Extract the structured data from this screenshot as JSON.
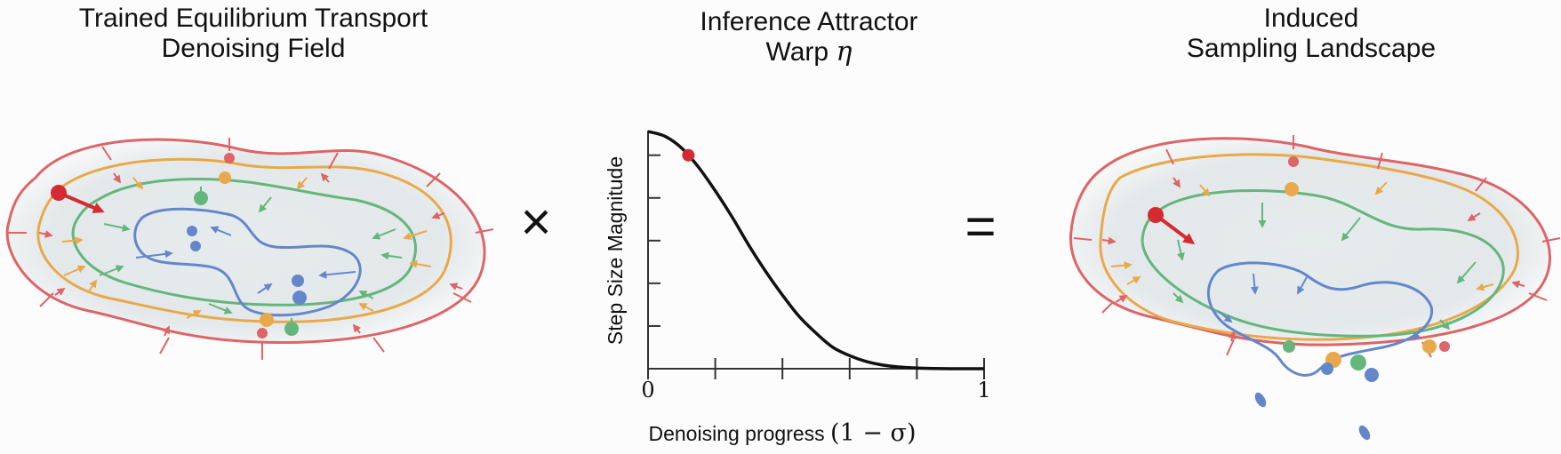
{
  "panels": {
    "left": {
      "title_line1": "Trained Equilibrium Transport",
      "title_line2": "Denoising Field"
    },
    "middle": {
      "title_line1": "Inference Attractor",
      "title_line2_text": "Warp ",
      "title_line2_symbol": "η"
    },
    "right": {
      "title_line1": "Induced",
      "title_line2": "Sampling Landscape"
    }
  },
  "operators": {
    "times": "×",
    "equals": "="
  },
  "chart_data": {
    "type": "line",
    "title": "",
    "xlabel_text": "Denoising progress ",
    "xlabel_math": "(1 − σ)",
    "ylabel": "Step Size Magnitude",
    "x_tick_labels": [
      "0",
      "1"
    ],
    "xlim": [
      0,
      1
    ],
    "ylim": [
      0,
      1
    ],
    "x": [
      0,
      0.05,
      0.1,
      0.15,
      0.2,
      0.25,
      0.3,
      0.35,
      0.4,
      0.45,
      0.5,
      0.55,
      0.6,
      0.65,
      0.7,
      0.75,
      0.8,
      0.85,
      0.9,
      0.95,
      1.0
    ],
    "y": [
      1.0,
      0.98,
      0.93,
      0.85,
      0.75,
      0.64,
      0.52,
      0.41,
      0.31,
      0.22,
      0.15,
      0.09,
      0.055,
      0.03,
      0.015,
      0.007,
      0.003,
      0.001,
      0.0,
      0.0,
      0.0
    ],
    "marker": {
      "x": 0.12,
      "y": 0.9,
      "color": "#d42a32"
    },
    "line_color": "#111111"
  },
  "colors": {
    "red": "#dd6467",
    "red_dark": "#d42a32",
    "orange": "#e9a94a",
    "green": "#64b67c",
    "blue": "#6487cc",
    "fill": "#e6ebec"
  }
}
